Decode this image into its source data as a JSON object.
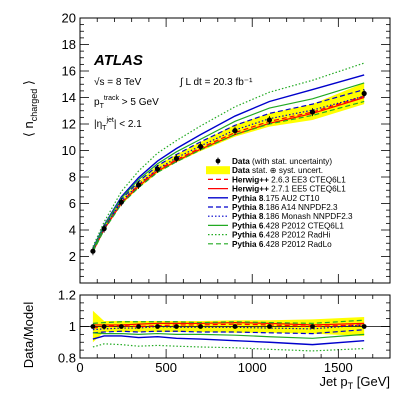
{
  "chart_data": {
    "type": "line",
    "xlabel": "Jet p_T [GeV]",
    "ylabel": "⟨ n_charged ⟩",
    "ratio_ylabel": "Data/Model",
    "xlim": [
      0,
      1800
    ],
    "ylim": [
      0,
      20
    ],
    "ratio_ylim": [
      0.8,
      1.2
    ],
    "x_ticks": [
      0,
      500,
      1000,
      1500
    ],
    "y_ticks": [
      2,
      4,
      6,
      8,
      10,
      12,
      14,
      16,
      18,
      20
    ],
    "ratio_y_ticks": [
      0.8,
      1,
      1.2
    ],
    "annotations": {
      "experiment": "ATLAS",
      "energy": "√s = 8 TeV",
      "lumi": "∫ L dt = 20.3 fb⁻¹",
      "track_cut": "p_T^track > 5 GeV",
      "eta_cut": "|η_T^jet| < 2.1"
    },
    "data": {
      "name": "Data (with stat. uncertainty)",
      "x": [
        75,
        140,
        240,
        340,
        450,
        560,
        700,
        900,
        1100,
        1350,
        1650
      ],
      "y": [
        2.4,
        4.1,
        6.1,
        7.4,
        8.6,
        9.4,
        10.3,
        11.5,
        12.3,
        12.9,
        14.3
      ],
      "band_label": "Data stat. ⊕ syst. uncert.",
      "band_low": [
        2.3,
        3.95,
        5.9,
        7.15,
        8.3,
        9.1,
        9.95,
        11.05,
        11.8,
        12.3,
        13.5
      ],
      "band_high": [
        2.5,
        4.25,
        6.3,
        7.65,
        8.9,
        9.7,
        10.65,
        11.95,
        12.8,
        13.5,
        15.1
      ],
      "ratio_low": [
        0.9,
        0.965,
        0.965,
        0.965,
        0.965,
        0.965,
        0.965,
        0.96,
        0.96,
        0.955,
        0.94
      ],
      "ratio_high": [
        1.1,
        1.035,
        1.035,
        1.035,
        1.035,
        1.035,
        1.035,
        1.04,
        1.04,
        1.045,
        1.06
      ],
      "ratio": [
        1.0,
        1.0,
        1.0,
        1.0,
        1.0,
        1.0,
        1.0,
        1.0,
        1.0,
        1.0,
        1.0
      ]
    },
    "series": [
      {
        "gen": "Herwig++",
        "tune": " 2.6.3 EE3 CTEQ6L1",
        "color": "#ff0000",
        "dash": "5,3",
        "width": 1.2,
        "y": [
          2.42,
          4.1,
          6.08,
          7.4,
          8.55,
          9.3,
          10.2,
          11.35,
          12.2,
          12.9,
          14.1
        ],
        "ratio": [
          0.99,
          1.0,
          1.005,
          1.0,
          1.005,
          1.01,
          1.01,
          1.015,
          1.01,
          1.0,
          1.01
        ]
      },
      {
        "gen": "Herwig++",
        "tune": " 2.7.1 EE5 CTEQ6L1",
        "color": "#ff0000",
        "dash": "",
        "width": 1.2,
        "y": [
          2.38,
          4.05,
          6.02,
          7.3,
          8.45,
          9.2,
          10.1,
          11.2,
          12.05,
          12.8,
          14.0
        ],
        "ratio": [
          1.01,
          1.01,
          1.01,
          1.015,
          1.02,
          1.02,
          1.02,
          1.025,
          1.02,
          1.01,
          1.02
        ]
      },
      {
        "gen": "Pythia 8",
        "tune": ".175 AU2 CT10",
        "color": "#0000cc",
        "dash": "",
        "width": 1.4,
        "y": [
          2.6,
          4.35,
          6.5,
          7.95,
          9.2,
          10.15,
          11.2,
          12.6,
          13.7,
          14.6,
          15.7
        ],
        "ratio": [
          0.92,
          0.94,
          0.94,
          0.93,
          0.935,
          0.925,
          0.92,
          0.91,
          0.9,
          0.885,
          0.91
        ]
      },
      {
        "gen": "Pythia 8",
        "tune": ".186 A14 NNPDF2.3",
        "color": "#0000cc",
        "dash": "5,3",
        "width": 1.2,
        "y": [
          2.5,
          4.25,
          6.3,
          7.65,
          8.85,
          9.7,
          10.65,
          11.9,
          12.8,
          13.5,
          14.6
        ],
        "ratio": [
          0.96,
          0.965,
          0.97,
          0.965,
          0.97,
          0.97,
          0.965,
          0.965,
          0.96,
          0.955,
          0.98
        ]
      },
      {
        "gen": "Pythia 8",
        "tune": ".186 Monash NNPDF2.3",
        "color": "#0000cc",
        "dash": "1.5,2",
        "width": 1.2,
        "y": [
          2.45,
          4.15,
          6.15,
          7.45,
          8.6,
          9.45,
          10.35,
          11.55,
          12.4,
          13.05,
          14.1
        ],
        "ratio": [
          0.98,
          0.985,
          0.99,
          0.99,
          1.0,
          0.995,
          0.995,
          0.995,
          0.99,
          0.985,
          1.01
        ]
      },
      {
        "gen": "Pythia 6",
        "tune": ".428 P2012 CTEQ6L1",
        "color": "#22aa22",
        "dash": "",
        "width": 1.2,
        "y": [
          2.5,
          4.3,
          6.4,
          7.8,
          9.0,
          9.9,
          10.85,
          12.2,
          13.2,
          13.9,
          15.1
        ],
        "ratio": [
          0.96,
          0.955,
          0.955,
          0.95,
          0.955,
          0.95,
          0.95,
          0.945,
          0.935,
          0.925,
          0.95
        ]
      },
      {
        "gen": "Pythia 6",
        "tune": ".428 P2012 RadHi",
        "color": "#22aa22",
        "dash": "1.5,2",
        "width": 1.2,
        "y": [
          2.75,
          4.6,
          6.9,
          8.45,
          9.8,
          10.75,
          11.85,
          13.3,
          14.4,
          15.3,
          16.6
        ],
        "ratio": [
          0.87,
          0.89,
          0.885,
          0.875,
          0.88,
          0.875,
          0.87,
          0.865,
          0.855,
          0.845,
          0.86
        ]
      },
      {
        "gen": "Pythia 6",
        "tune": ".428 P2012 RadLo",
        "color": "#22aa22",
        "dash": "5,3",
        "width": 1.2,
        "y": [
          2.35,
          4.0,
          5.95,
          7.2,
          8.35,
          9.15,
          10.05,
          11.2,
          12.0,
          12.65,
          13.7
        ],
        "ratio": [
          1.02,
          1.025,
          1.03,
          1.03,
          1.03,
          1.03,
          1.025,
          1.03,
          1.025,
          1.02,
          1.04
        ]
      }
    ]
  }
}
